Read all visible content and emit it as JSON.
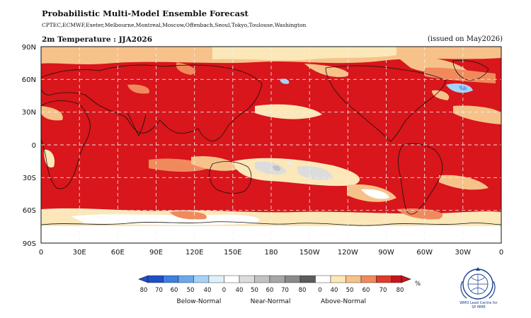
{
  "header": {
    "title": "Probabilistic Multi-Model Ensemble Forecast",
    "centres": "CPTEC,ECMWF,Exeter,Melbourne,Montreal,Moscow,Offenbach,Seoul,Tokyo,Toulouse,Washington",
    "map_title": "2m Temperature : JJA2026",
    "issued": "(issued on May2026)"
  },
  "axes": {
    "lat_labels": [
      "90N",
      "60N",
      "30N",
      "0",
      "30S",
      "60S",
      "90S"
    ],
    "lon_labels": [
      "0",
      "30E",
      "60E",
      "90E",
      "120E",
      "150E",
      "180",
      "150W",
      "120W",
      "90W",
      "60W",
      "30W",
      "0"
    ],
    "grid": true
  },
  "colorbar": {
    "unit": "%",
    "categories": [
      "Below-Normal",
      "Near-Normal",
      "Above-Normal"
    ],
    "below": {
      "labels": [
        "80",
        "70",
        "60",
        "50",
        "40"
      ],
      "colors": [
        "#1f4fc8",
        "#3f7fe0",
        "#6aa8ee",
        "#a6d3f7",
        "#dff0fb"
      ]
    },
    "near": {
      "labels": [
        "0",
        "40",
        "50",
        "60",
        "70",
        "80"
      ],
      "colors": [
        "#ffffff",
        "#dcdcdc",
        "#c2c2c2",
        "#a6a6a6",
        "#8a8a8a",
        "#5c5c5c"
      ]
    },
    "above": {
      "labels": [
        "0",
        "40",
        "50",
        "60",
        "70",
        "80"
      ],
      "colors": [
        "#ffffff",
        "#fbe7b8",
        "#f6c28a",
        "#f08a5c",
        "#e03a2a",
        "#c8161d"
      ]
    }
  },
  "logo": {
    "text_line1": "WMO Lead Centre for",
    "text_line2": "SP MME",
    "color": "#1a3f8f"
  }
}
